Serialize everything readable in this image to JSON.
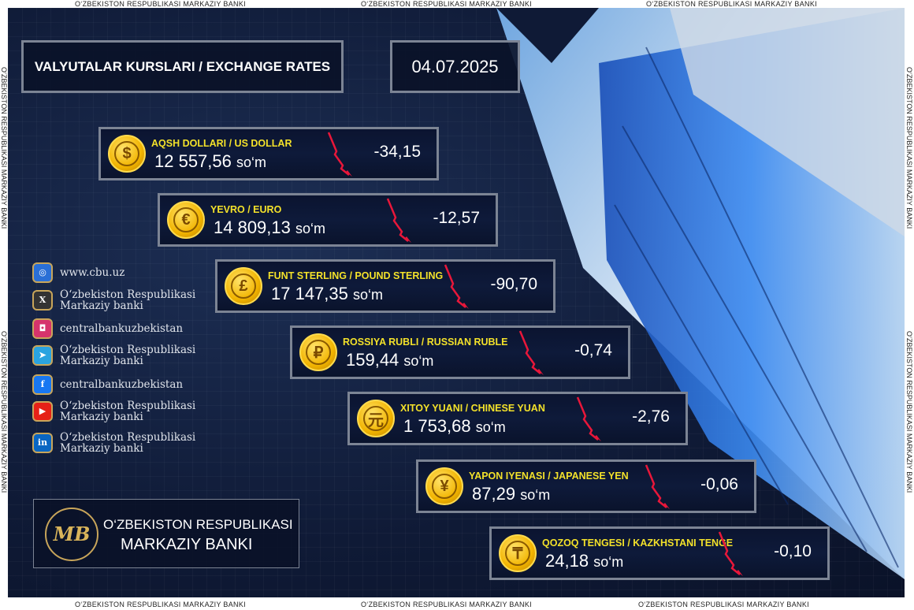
{
  "border_text": "O‘ZBEKISTON RESPUBLIKASI MARKAZIY BANKI",
  "header": {
    "title": "VALYUTALAR KURSLARI / EXCHANGE RATES",
    "date": "04.07.2025"
  },
  "unit": "so‘m",
  "currencies": [
    {
      "name": "AQSH DOLLARI / US DOLLAR",
      "symbol": "$",
      "rate": "12 557,56",
      "change": "-34,15",
      "trend": "down"
    },
    {
      "name": "YEVRO / EURO",
      "symbol": "€",
      "rate": "14 809,13",
      "change": "-12,57",
      "trend": "down"
    },
    {
      "name": "FUNT STERLING / POUND STERLING",
      "symbol": "£",
      "rate": "17 147,35",
      "change": "-90,70",
      "trend": "down"
    },
    {
      "name": "ROSSIYA RUBLI / RUSSIAN RUBLE",
      "symbol": "₽",
      "rate": "159,44",
      "change": "-0,74",
      "trend": "down"
    },
    {
      "name": "XITOY YUANI / CHINESE YUAN",
      "symbol": "元",
      "rate": "1 753,68",
      "change": "-2,76",
      "trend": "down"
    },
    {
      "name": "YAPON IYENASI / JAPANESE YEN",
      "symbol": "¥",
      "rate": "87,29",
      "change": "-0,06",
      "trend": "down"
    },
    {
      "name": "QOZOQ TENGESI / KAZKHSTANI TENGE",
      "symbol": "₸",
      "rate": "24,18",
      "change": "-0,10",
      "trend": "down"
    }
  ],
  "socials": [
    {
      "icon": "globe-icon",
      "text": "www.cbu.uz",
      "color": "#2a6fd6"
    },
    {
      "icon": "x-icon",
      "text": "O‘zbekiston Respublikasi Markaziy banki",
      "color": "#333333"
    },
    {
      "icon": "instagram-icon",
      "text": "centralbankuzbekistan",
      "color": "#d6336c"
    },
    {
      "icon": "telegram-icon",
      "text": "O‘zbekiston Respublikasi Markaziy banki",
      "color": "#2aa3e0"
    },
    {
      "icon": "facebook-icon",
      "text": "centralbankuzbekistan",
      "color": "#1877f2"
    },
    {
      "icon": "youtube-icon",
      "text": "O‘zbekiston Respublikasi Markaziy banki",
      "color": "#e62117"
    },
    {
      "icon": "linkedin-icon",
      "text": "O‘zbekiston Respublikasi Markaziy banki",
      "color": "#0a66c2"
    }
  ],
  "logo": {
    "line1": "O‘ZBEKISTON RESPUBLIKASI",
    "line2": "MARKAZIY BANKI",
    "emblem": "MB"
  },
  "colors": {
    "accent": "#f3e12a",
    "down": "#e8173a",
    "background": "#0f1a36"
  }
}
